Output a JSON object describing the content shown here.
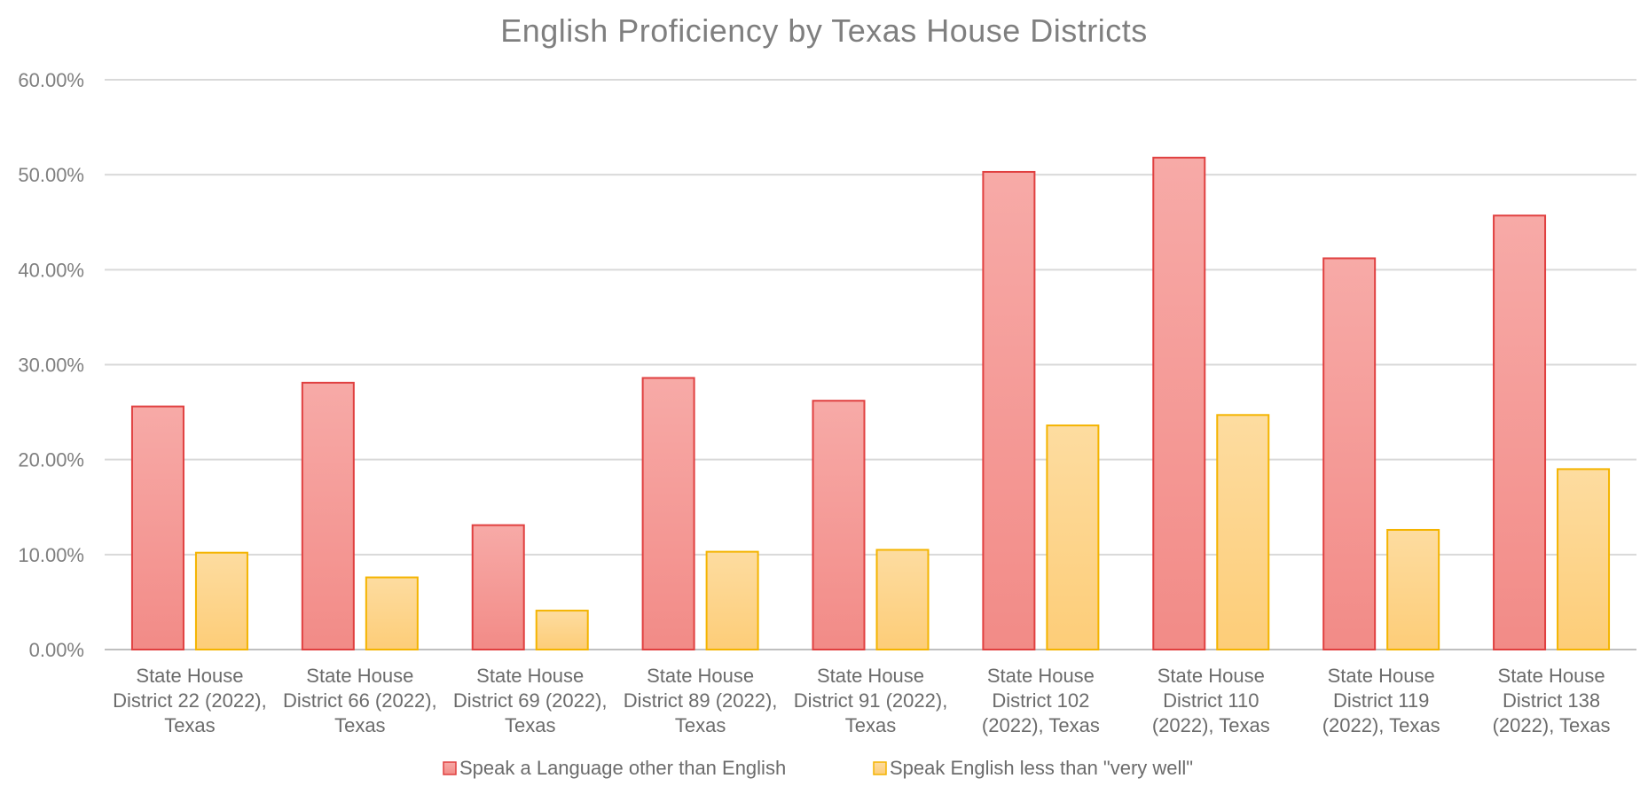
{
  "chart_data": {
    "type": "bar",
    "title": "English Proficiency by Texas House Districts",
    "xlabel": "",
    "ylabel": "",
    "ylim": [
      0,
      0.6
    ],
    "yticks": [
      "0.00%",
      "10.00%",
      "20.00%",
      "30.00%",
      "40.00%",
      "50.00%",
      "60.00%"
    ],
    "grid": true,
    "legend_position": "bottom",
    "categories": [
      [
        "State House",
        "District 22 (2022),",
        "Texas"
      ],
      [
        "State House",
        "District 66 (2022),",
        "Texas"
      ],
      [
        "State House",
        "District 69 (2022),",
        "Texas"
      ],
      [
        "State House",
        "District 89 (2022),",
        "Texas"
      ],
      [
        "State House",
        "District 91 (2022),",
        "Texas"
      ],
      [
        "State House",
        "District 102",
        "(2022), Texas"
      ],
      [
        "State House",
        "District 110",
        "(2022), Texas"
      ],
      [
        "State House",
        "District 119",
        "(2022), Texas"
      ],
      [
        "State House",
        "District 138",
        "(2022), Texas"
      ]
    ],
    "series": [
      {
        "name": "Speak a Language other than English",
        "color": "#f4a09c",
        "stroke": "#e04040",
        "values": [
          0.256,
          0.281,
          0.131,
          0.286,
          0.262,
          0.503,
          0.518,
          0.412,
          0.457
        ]
      },
      {
        "name": "Speak English less than \"very well\"",
        "color": "#fdd58a",
        "stroke": "#f4b400",
        "values": [
          0.102,
          0.076,
          0.041,
          0.103,
          0.105,
          0.236,
          0.247,
          0.126,
          0.19
        ]
      }
    ]
  }
}
